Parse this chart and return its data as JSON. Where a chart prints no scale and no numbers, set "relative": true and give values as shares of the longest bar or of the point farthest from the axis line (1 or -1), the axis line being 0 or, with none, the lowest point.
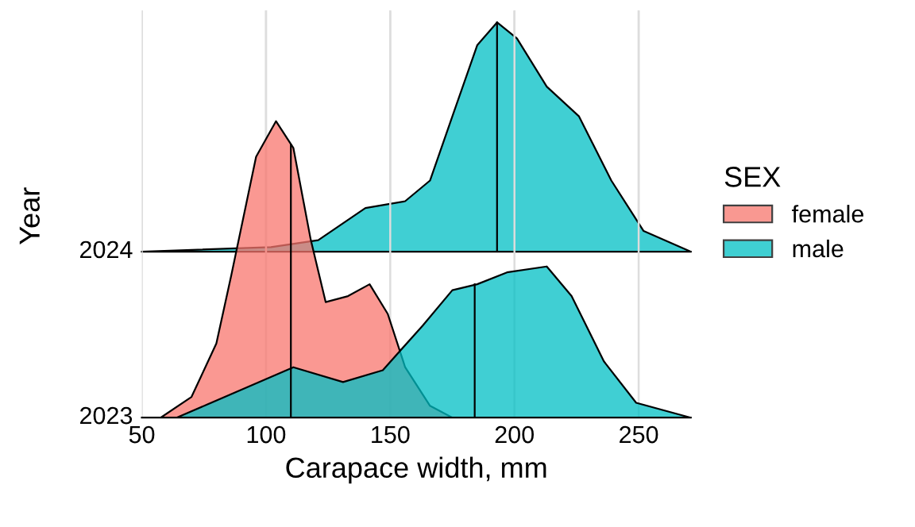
{
  "chart_data": [
    {
      "type": "area",
      "relative": true,
      "grid": "x",
      "xlim": [
        50,
        271
      ],
      "xticks": [
        50,
        100,
        150,
        200,
        250
      ],
      "tick_labels": false,
      "annotations": [
        {
          "text": "2024",
          "x": 50,
          "y": 0
        }
      ],
      "series": [
        {
          "color": "#00bfc4",
          "x": [
            50,
            102,
            121,
            140,
            156,
            166,
            175,
            185,
            193,
            201,
            213,
            226,
            239,
            252,
            271
          ],
          "values": [
            0,
            0.02,
            0.05,
            0.19,
            0.22,
            0.31,
            0.59,
            0.9,
            1,
            0.93,
            0.72,
            0.59,
            0.31,
            0.09,
            0
          ]
        },
        {
          "type": "line",
          "color": "#000000",
          "x": [
            193,
            193
          ],
          "values": [
            0,
            1
          ]
        }
      ]
    },
    {
      "type": "area",
      "relative": true,
      "xlabel": "Carapace width, mm",
      "ylabel": "Year",
      "legend_title": "SEX",
      "legend": "right",
      "grid": "x",
      "xlim": [
        50,
        271
      ],
      "xticks": [
        50,
        100,
        150,
        200,
        250
      ],
      "tick_labels": "x",
      "annotations": [
        {
          "text": "2023",
          "x": 50,
          "y": 0
        }
      ],
      "series": [
        {
          "name": "female",
          "color": "#f8766d",
          "x": [
            57.6,
            70,
            80,
            86,
            96,
            104,
            111,
            118,
            124,
            133,
            141.7,
            149,
            156,
            166,
            175
          ],
          "values": [
            0,
            0.07,
            0.25,
            0.48,
            0.88,
            1,
            0.91,
            0.6,
            0.39,
            0.41,
            0.45,
            0.35,
            0.17,
            0.04,
            0
          ]
        },
        {
          "name": "male",
          "color": "#00bfc4",
          "x": [
            50,
            64,
            89,
            111,
            131,
            147,
            163,
            175,
            185,
            197,
            213,
            223,
            236,
            249,
            271
          ],
          "values": [
            0,
            0,
            0.09,
            0.17,
            0.12,
            0.16,
            0.31,
            0.43,
            0.45,
            0.49,
            0.51,
            0.41,
            0.19,
            0.05,
            0
          ]
        },
        {
          "type": "line",
          "color": "#000000",
          "x": [
            110,
            110
          ],
          "values": [
            0,
            0.92
          ]
        },
        {
          "type": "line",
          "color": "#000000",
          "x": [
            184,
            184
          ],
          "values": [
            0,
            0.45
          ]
        }
      ]
    }
  ]
}
